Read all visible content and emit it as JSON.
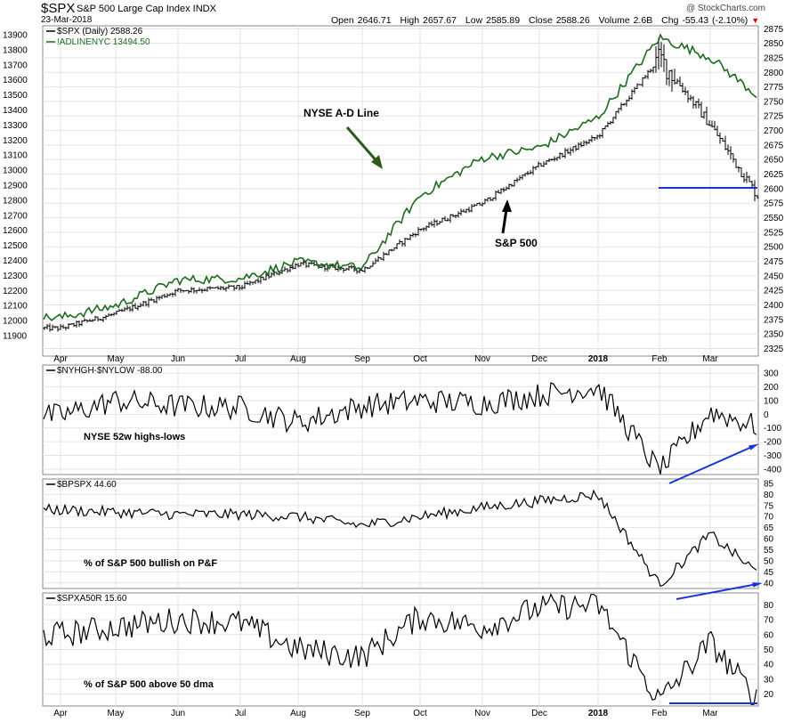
{
  "header": {
    "symbol": "$SPX",
    "description": "S&P 500 Large Cap Index  INDX",
    "date": "23-Mar-2018",
    "watermark": "@ StockCharts.com",
    "quote": {
      "open_label": "Open",
      "open": "2646.71",
      "high_label": "High",
      "high": "2657.67",
      "low_label": "Low",
      "low": "2585.89",
      "close_label": "Close",
      "close": "2588.26",
      "volume_label": "Volume",
      "volume": "2.6B",
      "chg_label": "Chg",
      "chg": "-55.43 (-2.10%)",
      "chg_arrow": "▼"
    }
  },
  "colors": {
    "ad_line": "#1e6b1e",
    "price": "#000000",
    "annotation_arrow_green": "#2d5a1a",
    "blue_lines": "#1a35d6",
    "grid": "#e3e3e3"
  },
  "x_axis": {
    "month_labels": [
      "Apr",
      "May",
      "Jun",
      "Jul",
      "Aug",
      "Sep",
      "Oct",
      "Nov",
      "Dec",
      "2018",
      "Feb",
      "Mar"
    ],
    "bold_labels": [
      "2018"
    ]
  },
  "chart_data": [
    {
      "type": "line",
      "panel": "price",
      "legend": [
        "$SPX (Daily) 2588.26",
        "!ADLINENYC 13494.50"
      ],
      "annotations": [
        "NYSE A-D Line",
        "S&P 500"
      ],
      "left_axis": {
        "name": "!ADLINENYC",
        "ticks": [
          11900,
          12000,
          12100,
          12200,
          12300,
          12400,
          12500,
          12600,
          12700,
          12800,
          12900,
          13000,
          13100,
          13200,
          13300,
          13400,
          13500,
          13600,
          13700,
          13800,
          13900
        ]
      },
      "right_axis": {
        "name": "$SPX",
        "ticks": [
          2325,
          2350,
          2375,
          2400,
          2425,
          2450,
          2475,
          2500,
          2525,
          2550,
          2575,
          2600,
          2625,
          2650,
          2675,
          2700,
          2725,
          2750,
          2775,
          2800,
          2825,
          2850,
          2875
        ]
      },
      "ylim_right": [
        2312,
        2880
      ],
      "x": [
        "Apr",
        "May",
        "Jun",
        "Jul",
        "Aug",
        "Sep",
        "Oct",
        "Nov",
        "Dec",
        "2018",
        "Feb",
        "Mar",
        "Mar-23"
      ],
      "series": [
        {
          "name": "$SPX",
          "values": [
            2360,
            2385,
            2425,
            2430,
            2470,
            2460,
            2530,
            2575,
            2640,
            2690,
            2825,
            2710,
            2588
          ]
        },
        {
          "name": "!ADLINENYC",
          "values": [
            12020,
            12100,
            12270,
            12280,
            12390,
            12350,
            12830,
            13080,
            13150,
            13350,
            13880,
            13750,
            13494
          ]
        }
      ]
    },
    {
      "type": "line",
      "panel": "NYSE 52w highs-lows",
      "legend": "$NYHGH-$NYLOW -88.00",
      "annotation": "NYSE 52w highs-lows",
      "ticks": [
        300,
        200,
        100,
        0,
        -100,
        -200,
        -300,
        -400
      ],
      "ylim": [
        -440,
        360
      ],
      "x": [
        "Apr",
        "May",
        "Jun",
        "Jul",
        "Aug",
        "Sep",
        "Oct",
        "Nov",
        "Dec",
        "2018",
        "Feb",
        "Mar",
        "Mar-23"
      ],
      "values": [
        -10,
        100,
        60,
        50,
        -60,
        60,
        100,
        80,
        140,
        200,
        -420,
        20,
        -88
      ]
    },
    {
      "type": "line",
      "panel": "% of S&P 500 bullish on P&F",
      "legend": "$BPSPX 44.60",
      "annotation": "% of S&P 500 bullish on P&F",
      "ticks": [
        40,
        45,
        50,
        55,
        60,
        65,
        70,
        75,
        80,
        85
      ],
      "ylim": [
        37.5,
        87
      ],
      "x": [
        "Apr",
        "May",
        "Jun",
        "Jul",
        "Aug",
        "Sep",
        "Oct",
        "Nov",
        "Dec",
        "2018",
        "Feb",
        "Mar",
        "Mar-23"
      ],
      "values": [
        73,
        72,
        71,
        71,
        70,
        66,
        70,
        74,
        77,
        80,
        39,
        62,
        44.6
      ]
    },
    {
      "type": "line",
      "panel": "% of S&P 500 above 50 dma",
      "legend": "$SPXA50R 15.60",
      "annotation": "% of S&P 500 above 50 dma",
      "ticks": [
        20,
        30,
        40,
        50,
        60,
        70,
        80
      ],
      "ylim": [
        12,
        88
      ],
      "x": [
        "Apr",
        "May",
        "Jun",
        "Jul",
        "Aug",
        "Sep",
        "Oct",
        "Nov",
        "Dec",
        "2018",
        "Feb",
        "Mar",
        "Mar-23"
      ],
      "values": [
        60,
        65,
        70,
        68,
        50,
        45,
        72,
        65,
        78,
        80,
        15,
        55,
        15.6
      ]
    }
  ]
}
